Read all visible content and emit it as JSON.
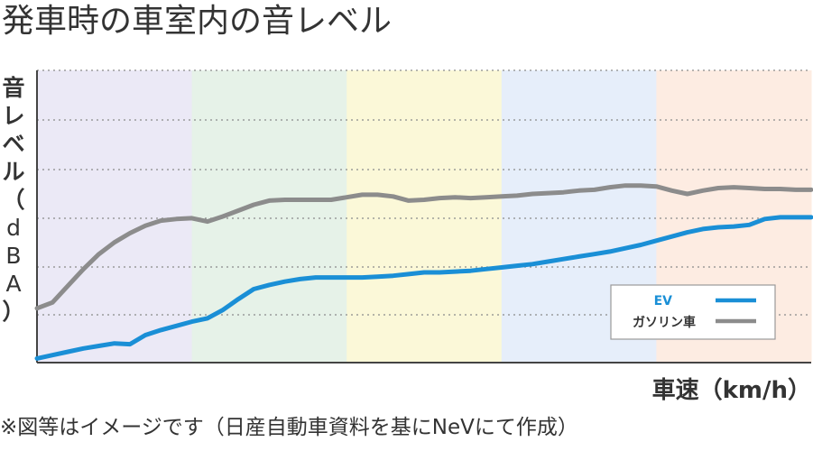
{
  "title": "発車時の車室内の音レベル",
  "note": "※図等はイメージです（日産自動車資料を基にNeVにて作成）",
  "chart_data": {
    "type": "line",
    "ylabel_chars": [
      "音",
      "レ",
      "ベ",
      "ル",
      "（",
      "d",
      "B",
      "A",
      "）"
    ],
    "xlabel": "車速（km/h）",
    "grid": true,
    "legend_position": "bottom-right",
    "band_colors": [
      "#ebe9f6",
      "#e6f2e8",
      "#fbf8d8",
      "#e6eefa",
      "#fdece2"
    ],
    "x": [
      0,
      2,
      4,
      6,
      8,
      10,
      12,
      14,
      16,
      18,
      20,
      22,
      24,
      26,
      28,
      30,
      32,
      34,
      36,
      38,
      40,
      42,
      44,
      46,
      48,
      50,
      52,
      54,
      56,
      58,
      60,
      62,
      64,
      66,
      68,
      70,
      72,
      74,
      76,
      78,
      80,
      82,
      84,
      86,
      88,
      90,
      92,
      94,
      96,
      98,
      100
    ],
    "series": [
      {
        "name": "EV",
        "color": "#1a8fd6",
        "values": [
          5,
          9,
          13,
          17,
          20,
          23,
          22,
          33,
          39,
          44,
          49,
          53,
          63,
          76,
          88,
          93,
          97,
          100,
          102,
          102,
          102,
          102,
          103,
          104,
          106,
          108,
          108,
          109,
          110,
          112,
          114,
          116,
          118,
          121,
          124,
          127,
          130,
          133,
          137,
          141,
          146,
          151,
          156,
          160,
          162,
          163,
          165,
          172,
          174,
          174,
          174
        ]
      },
      {
        "name": "ガソリン車",
        "color": "#8c8c8c",
        "values": [
          65,
          72,
          92,
          112,
          130,
          144,
          155,
          164,
          170,
          172,
          173,
          169,
          175,
          182,
          189,
          194,
          195,
          195,
          195,
          195,
          198,
          201,
          201,
          199,
          194,
          195,
          197,
          198,
          197,
          198,
          199,
          200,
          202,
          203,
          204,
          206,
          207,
          210,
          212,
          212,
          211,
          206,
          202,
          206,
          209,
          210,
          209,
          208,
          208,
          207,
          207
        ]
      }
    ]
  }
}
